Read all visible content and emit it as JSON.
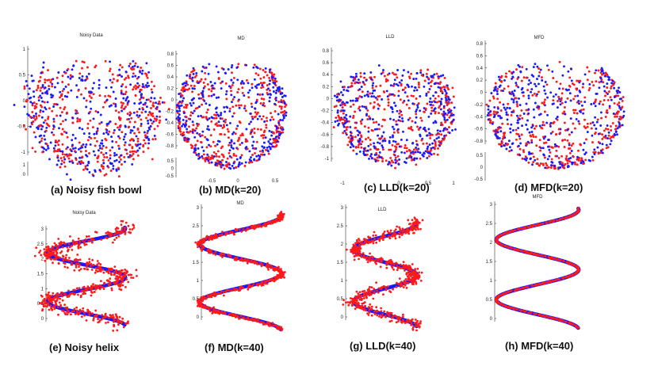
{
  "figure": {
    "colors": {
      "noisy": "#ff1a1a",
      "embed_a": "#1a1aff",
      "embed_b": "#ff1a1a"
    }
  },
  "chart_data": [
    {
      "type": "scatter",
      "id": "a",
      "title": "Noisy Data",
      "caption": "(a) Noisy fish bowl",
      "shape": "bowl",
      "n_points": 760,
      "yticks": [
        "1",
        "0.5",
        "0",
        "-0.5",
        "-1"
      ],
      "xticks": [],
      "ztick_labels": [
        "1",
        "0"
      ],
      "series": [
        {
          "name": "noisy points red",
          "color": "#ff1a1a"
        },
        {
          "name": "noisy points blue",
          "color": "#1a1aff"
        }
      ]
    },
    {
      "type": "scatter",
      "id": "b",
      "title": "MD",
      "caption": "(b) MD(k=20)",
      "shape": "bowl",
      "n_points": 760,
      "yticks": [
        "0.8",
        "0.6",
        "0.4",
        "0.2",
        "0",
        "-0.2",
        "-0.4",
        "-0.6",
        "-0.8"
      ],
      "xticks": [
        "-0.5",
        "0",
        "0.5"
      ],
      "ztick_labels": [
        "0.5",
        "0",
        "-0.5"
      ],
      "series": [
        {
          "name": "denoised blue",
          "color": "#1a1aff"
        },
        {
          "name": "denoised red",
          "color": "#ff1a1a"
        }
      ]
    },
    {
      "type": "scatter",
      "id": "c",
      "title": "LLD",
      "caption": "(c) LLD(k=20)",
      "shape": "bowl",
      "n_points": 760,
      "yticks": [
        "0.8",
        "0.6",
        "0.4",
        "0.2",
        "0",
        "-0.2",
        "-0.4",
        "-0.6",
        "-0.8",
        "-1"
      ],
      "xticks": [
        "-1",
        "0",
        "0.5",
        "1"
      ],
      "ztick_labels": [],
      "series": [
        {
          "name": "denoised blue",
          "color": "#1a1aff"
        },
        {
          "name": "denoised red",
          "color": "#ff1a1a"
        }
      ]
    },
    {
      "type": "scatter",
      "id": "d",
      "title": "MFD",
      "caption": "(d) MFD(k=20)",
      "shape": "bowl",
      "n_points": 760,
      "yticks": [
        "0.8",
        "0.6",
        "0.4",
        "0.2",
        "0",
        "-0.2",
        "-0.4",
        "-0.6",
        "-0.8"
      ],
      "xticks": [],
      "ztick_labels": [
        "0.5",
        "0",
        "-0.5"
      ],
      "series": [
        {
          "name": "denoised blue",
          "color": "#1a1aff"
        },
        {
          "name": "denoised red",
          "color": "#ff1a1a"
        }
      ]
    },
    {
      "type": "scatter",
      "id": "e",
      "title": "Noisy Data",
      "caption": "(e) Noisy helix",
      "shape": "helix",
      "n_points": 620,
      "yticks": [
        "3",
        "2.5",
        "2",
        "1.5",
        "1",
        "0.5",
        "0"
      ],
      "xticks": [],
      "ztick_labels": [],
      "series": [
        {
          "name": "noisy points",
          "color": "#ff1a1a"
        },
        {
          "name": "ground truth helix",
          "color": "#1a1aff"
        }
      ]
    },
    {
      "type": "scatter",
      "id": "f",
      "title": "MD",
      "caption": "(f) MD(k=40)",
      "shape": "helix",
      "n_points": 620,
      "yticks": [
        "3",
        "2.5",
        "2",
        "1.5",
        "1",
        "0.5",
        "0"
      ],
      "xticks": [],
      "ztick_labels": [],
      "series": [
        {
          "name": "denoised",
          "color": "#ff1a1a"
        },
        {
          "name": "ground truth helix",
          "color": "#1a1aff"
        }
      ]
    },
    {
      "type": "scatter",
      "id": "g",
      "title": "LLD",
      "caption": "(g) LLD(k=40)",
      "shape": "helix",
      "n_points": 620,
      "yticks": [
        "3",
        "2.5",
        "2",
        "1.5",
        "1",
        "0.5",
        "0"
      ],
      "xticks": [],
      "ztick_labels": [],
      "series": [
        {
          "name": "denoised",
          "color": "#ff1a1a"
        },
        {
          "name": "ground truth helix",
          "color": "#1a1aff"
        }
      ]
    },
    {
      "type": "scatter",
      "id": "h",
      "title": "MFD",
      "caption": "(h) MFD(k=40)",
      "shape": "helix",
      "n_points": 620,
      "yticks": [
        "3",
        "2.5",
        "2",
        "1.5",
        "1",
        "0.5",
        "0"
      ],
      "xticks": [],
      "ztick_labels": [],
      "series": [
        {
          "name": "denoised",
          "color": "#ff1a1a"
        },
        {
          "name": "ground truth helix",
          "color": "#1a1aff"
        }
      ]
    }
  ]
}
